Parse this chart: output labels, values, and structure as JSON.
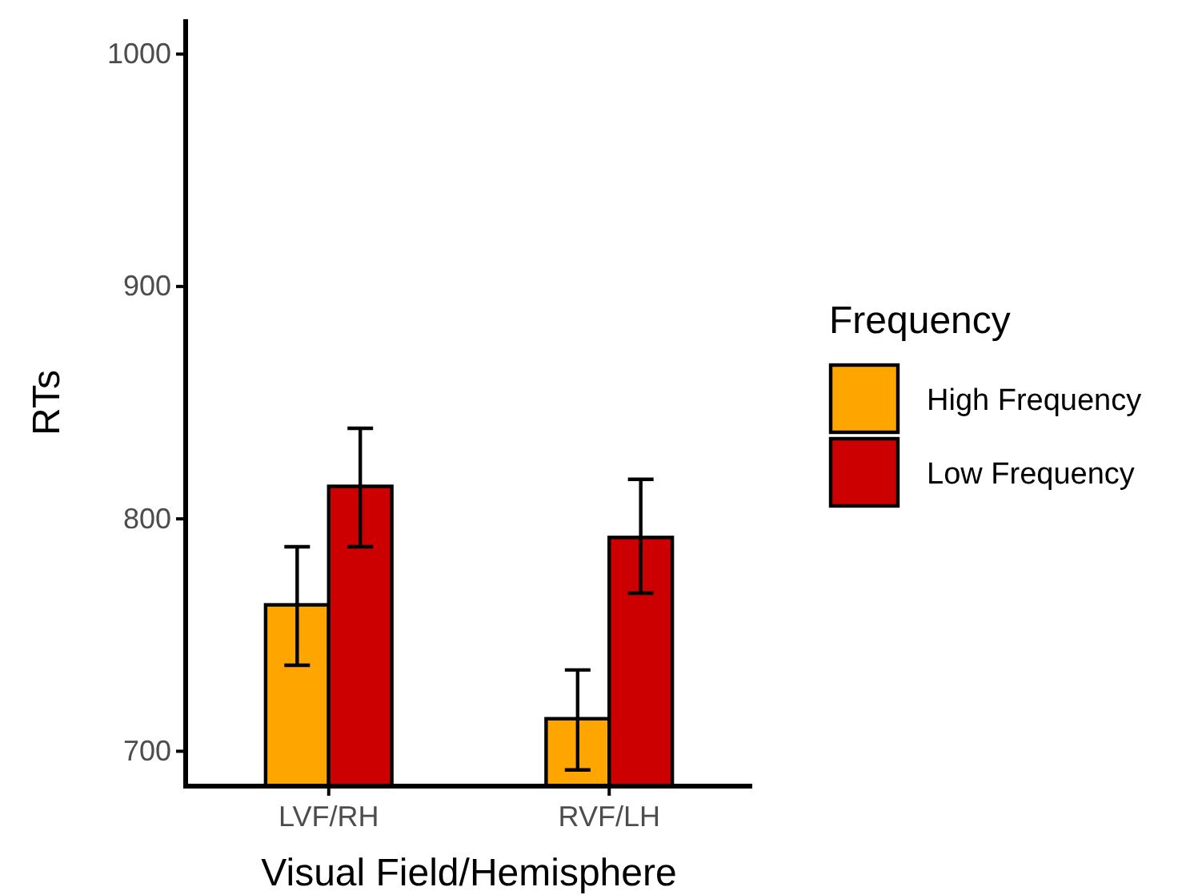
{
  "chart_data": {
    "type": "bar",
    "xlabel": "Visual Field/Hemisphere",
    "ylabel": "RTs",
    "legend_title": "Frequency",
    "categories": [
      "LVF/RH",
      "RVF/LH"
    ],
    "series": [
      {
        "name": "High Frequency",
        "color": "#ffa500",
        "values": [
          763,
          714
        ],
        "errors": [
          [
            737,
            788
          ],
          [
            692,
            735
          ]
        ]
      },
      {
        "name": "Low Frequency",
        "color": "#cc0000",
        "values": [
          814,
          792
        ],
        "errors": [
          [
            788,
            839
          ],
          [
            768,
            817
          ]
        ]
      }
    ],
    "ylim": [
      685,
      1015
    ],
    "yticks": [
      700,
      800,
      900,
      1000
    ],
    "grid": false,
    "legend": "right"
  }
}
